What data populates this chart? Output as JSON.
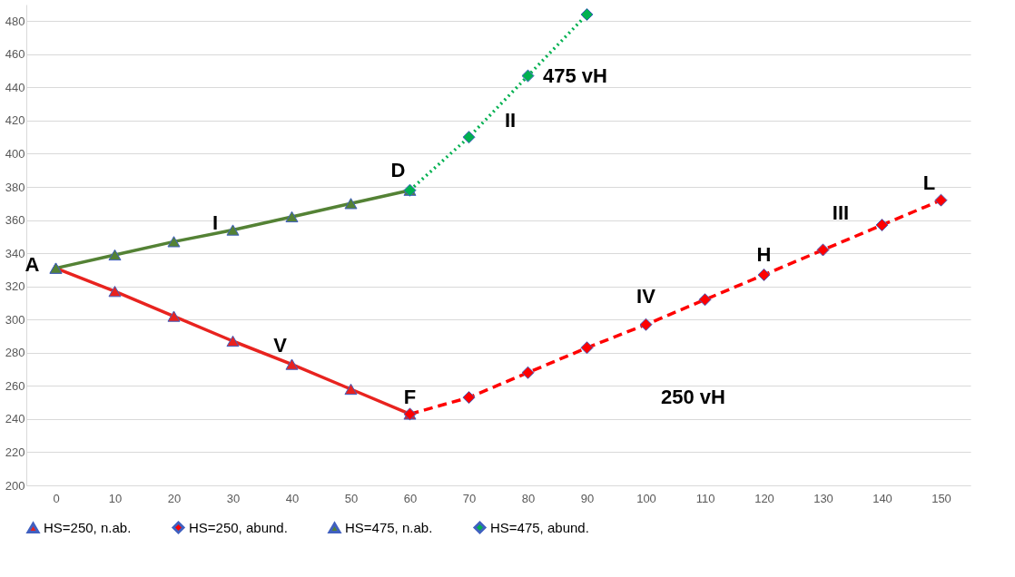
{
  "chart_data": {
    "type": "line",
    "xlim": [
      -5,
      155
    ],
    "xticks": [
      0,
      10,
      20,
      30,
      40,
      50,
      60,
      70,
      80,
      90,
      100,
      110,
      120,
      130,
      140,
      150
    ],
    "ylim": [
      200,
      490
    ],
    "yticks": [
      200,
      220,
      240,
      260,
      280,
      300,
      320,
      340,
      360,
      380,
      400,
      420,
      440,
      460,
      480
    ],
    "grid": "y",
    "legend": "bottom",
    "series": [
      {
        "name": "HS=250, n.ab.",
        "color": "#e8231f",
        "marker": "triangle",
        "line_style": "solid",
        "x": [
          0,
          10,
          20,
          30,
          40,
          50,
          60
        ],
        "values": [
          331,
          317,
          302,
          287,
          273,
          258,
          243
        ]
      },
      {
        "name": "HS=250, abund.",
        "color": "#ff0000",
        "marker": "diamond",
        "line_style": "dashed",
        "x": [
          60,
          70,
          80,
          90,
          100,
          110,
          120,
          130,
          140,
          150
        ],
        "values": [
          243,
          253,
          268,
          283,
          297,
          312,
          327,
          342,
          357,
          372
        ]
      },
      {
        "name": "HS=475, n.ab.",
        "color": "#548235",
        "marker": "triangle",
        "line_style": "solid",
        "x": [
          0,
          10,
          20,
          30,
          40,
          50,
          60
        ],
        "values": [
          331,
          339,
          347,
          354,
          362,
          370,
          378
        ]
      },
      {
        "name": "HS=475, abund.",
        "color": "#00b050",
        "marker": "diamond",
        "line_style": "dotted",
        "x": [
          60,
          70,
          80,
          90
        ],
        "values": [
          378,
          410,
          447,
          484
        ]
      }
    ],
    "annotations": [
      "A",
      "D",
      "F",
      "H",
      "L",
      "I",
      "II",
      "III",
      "IV",
      "V",
      "475 vH",
      "250 vH"
    ]
  }
}
